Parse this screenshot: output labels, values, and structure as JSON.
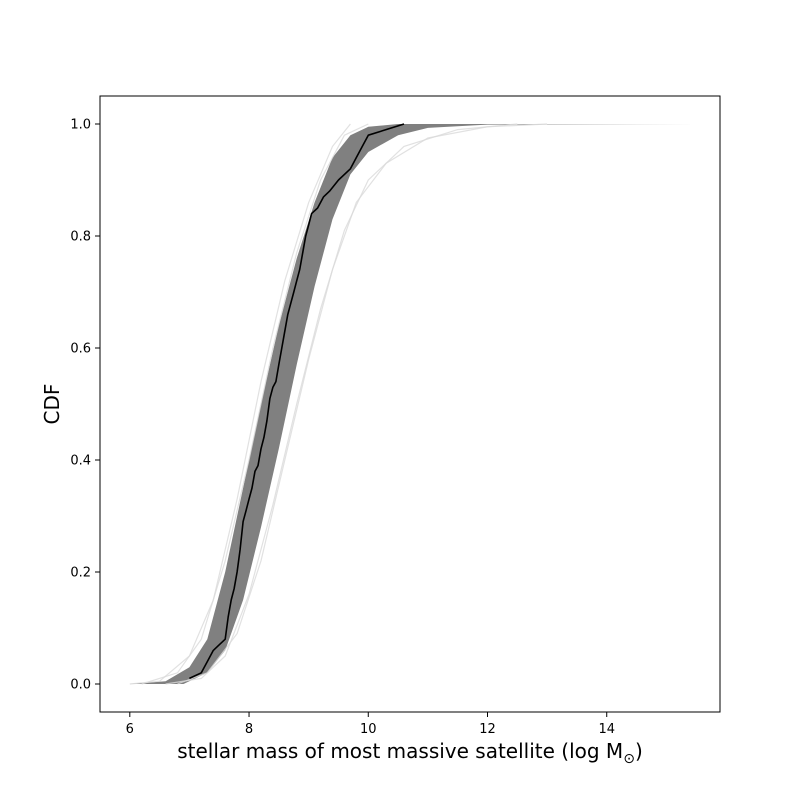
{
  "chart_data": {
    "type": "line",
    "title": "",
    "xlabel": "stellar mass of most massive satellite (log M",
    "xlabel_sub": "⊙",
    "xlabel_end": ")",
    "ylabel": "CDF",
    "xlim": [
      5.5,
      15.9
    ],
    "ylim": [
      -0.05,
      1.05
    ],
    "x_ticks": [
      6,
      8,
      10,
      12,
      14
    ],
    "x_tick_labels": [
      "6",
      "8",
      "10",
      "12",
      "14"
    ],
    "y_ticks": [
      0.0,
      0.2,
      0.4,
      0.6,
      0.8,
      1.0
    ],
    "y_tick_labels": [
      "0.0",
      "0.2",
      "0.4",
      "0.6",
      "0.8",
      "1.0"
    ],
    "grid": false,
    "legend": "none",
    "colors": {
      "observed": "#000000",
      "realizations": "#808080",
      "faint": "#d9d9d9"
    },
    "realization_band": {
      "description_source": "many overlapping model CDF realizations",
      "upper_envelope": [
        [
          6.0,
          0.0
        ],
        [
          6.6,
          0.005
        ],
        [
          7.0,
          0.03
        ],
        [
          7.3,
          0.08
        ],
        [
          7.6,
          0.2
        ],
        [
          7.9,
          0.35
        ],
        [
          8.2,
          0.5
        ],
        [
          8.5,
          0.64
        ],
        [
          8.8,
          0.76
        ],
        [
          9.1,
          0.86
        ],
        [
          9.4,
          0.94
        ],
        [
          9.7,
          0.98
        ],
        [
          10.0,
          0.995
        ],
        [
          10.5,
          1.0
        ],
        [
          15.5,
          1.0
        ]
      ],
      "lower_envelope": [
        [
          6.0,
          0.0
        ],
        [
          6.9,
          0.0
        ],
        [
          7.3,
          0.02
        ],
        [
          7.6,
          0.06
        ],
        [
          7.9,
          0.15
        ],
        [
          8.2,
          0.28
        ],
        [
          8.5,
          0.42
        ],
        [
          8.8,
          0.57
        ],
        [
          9.1,
          0.71
        ],
        [
          9.4,
          0.83
        ],
        [
          9.7,
          0.91
        ],
        [
          10.0,
          0.95
        ],
        [
          10.5,
          0.98
        ],
        [
          11.0,
          0.993
        ],
        [
          12.0,
          0.999
        ],
        [
          15.5,
          1.0
        ]
      ]
    },
    "faint_series": [
      [
        [
          6.0,
          0.0
        ],
        [
          6.5,
          0.005
        ],
        [
          7.0,
          0.05
        ],
        [
          7.4,
          0.15
        ],
        [
          7.8,
          0.33
        ],
        [
          8.2,
          0.54
        ],
        [
          8.6,
          0.72
        ],
        [
          9.0,
          0.86
        ],
        [
          9.4,
          0.96
        ],
        [
          9.7,
          1.0
        ]
      ],
      [
        [
          6.6,
          0.0
        ],
        [
          7.2,
          0.01
        ],
        [
          7.6,
          0.05
        ],
        [
          8.0,
          0.16
        ],
        [
          8.4,
          0.32
        ],
        [
          8.8,
          0.5
        ],
        [
          9.2,
          0.67
        ],
        [
          9.6,
          0.81
        ],
        [
          10.0,
          0.9
        ],
        [
          10.6,
          0.96
        ],
        [
          11.5,
          0.99
        ],
        [
          12.5,
          1.0
        ]
      ],
      [
        [
          6.2,
          0.0
        ],
        [
          6.8,
          0.02
        ],
        [
          7.2,
          0.08
        ],
        [
          7.6,
          0.22
        ],
        [
          8.0,
          0.4
        ],
        [
          8.4,
          0.6
        ],
        [
          8.8,
          0.77
        ],
        [
          9.2,
          0.9
        ],
        [
          9.6,
          0.98
        ],
        [
          10.0,
          1.0
        ]
      ],
      [
        [
          6.8,
          0.0
        ],
        [
          7.3,
          0.02
        ],
        [
          7.8,
          0.09
        ],
        [
          8.2,
          0.22
        ],
        [
          8.6,
          0.4
        ],
        [
          9.0,
          0.58
        ],
        [
          9.4,
          0.74
        ],
        [
          9.8,
          0.86
        ],
        [
          10.3,
          0.93
        ],
        [
          11.0,
          0.975
        ],
        [
          12.0,
          0.995
        ],
        [
          13.0,
          1.0
        ]
      ]
    ],
    "series": [
      {
        "points": [
          [
            7.0,
            0.01
          ],
          [
            7.2,
            0.02
          ],
          [
            7.3,
            0.04
          ],
          [
            7.4,
            0.06
          ],
          [
            7.5,
            0.07
          ],
          [
            7.6,
            0.08
          ],
          [
            7.65,
            0.12
          ],
          [
            7.7,
            0.15
          ],
          [
            7.75,
            0.17
          ],
          [
            7.8,
            0.2
          ],
          [
            7.85,
            0.24
          ],
          [
            7.9,
            0.29
          ],
          [
            7.95,
            0.31
          ],
          [
            8.0,
            0.33
          ],
          [
            8.05,
            0.35
          ],
          [
            8.1,
            0.38
          ],
          [
            8.15,
            0.39
          ],
          [
            8.2,
            0.42
          ],
          [
            8.25,
            0.44
          ],
          [
            8.3,
            0.47
          ],
          [
            8.35,
            0.51
          ],
          [
            8.4,
            0.53
          ],
          [
            8.45,
            0.54
          ],
          [
            8.5,
            0.57
          ],
          [
            8.55,
            0.6
          ],
          [
            8.6,
            0.63
          ],
          [
            8.65,
            0.66
          ],
          [
            8.7,
            0.68
          ],
          [
            8.75,
            0.7
          ],
          [
            8.8,
            0.72
          ],
          [
            8.85,
            0.74
          ],
          [
            8.9,
            0.77
          ],
          [
            8.95,
            0.8
          ],
          [
            9.0,
            0.82
          ],
          [
            9.05,
            0.84
          ],
          [
            9.15,
            0.85
          ],
          [
            9.25,
            0.87
          ],
          [
            9.35,
            0.88
          ],
          [
            9.5,
            0.9
          ],
          [
            9.7,
            0.92
          ],
          [
            9.8,
            0.94
          ],
          [
            9.9,
            0.96
          ],
          [
            10.0,
            0.98
          ],
          [
            10.6,
            1.0
          ]
        ]
      }
    ]
  }
}
